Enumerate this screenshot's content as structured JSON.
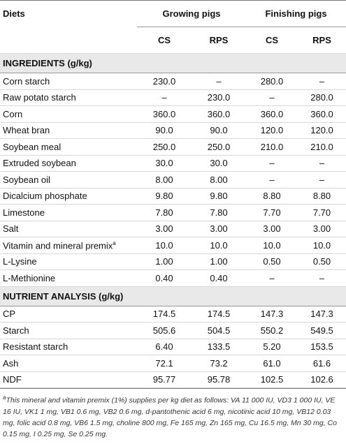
{
  "header": {
    "diets": "Diets",
    "groups": [
      "Growing pigs",
      "Finishing pigs"
    ],
    "subheaders": [
      "CS",
      "RPS",
      "CS",
      "RPS"
    ]
  },
  "sections": [
    {
      "title": "INGREDIENTS (g/kg)",
      "rows": [
        {
          "label": "Corn starch",
          "values": [
            "230.0",
            "–",
            "280.0",
            "–"
          ]
        },
        {
          "label": "Raw potato starch",
          "values": [
            "–",
            "230.0",
            "–",
            "280.0"
          ]
        },
        {
          "label": "Corn",
          "values": [
            "360.0",
            "360.0",
            "360.0",
            "360.0"
          ]
        },
        {
          "label": "Wheat bran",
          "values": [
            "90.0",
            "90.0",
            "120.0",
            "120.0"
          ]
        },
        {
          "label": "Soybean meal",
          "values": [
            "250.0",
            "250.0",
            "210.0",
            "210.0"
          ]
        },
        {
          "label": "Extruded soybean",
          "values": [
            "30.0",
            "30.0",
            "–",
            "–"
          ]
        },
        {
          "label": "Soybean oil",
          "values": [
            "8.00",
            "8.00",
            "–",
            "–"
          ]
        },
        {
          "label": "Dicalcium phosphate",
          "values": [
            "9.80",
            "9.80",
            "8.80",
            "8.80"
          ]
        },
        {
          "label": "Limestone",
          "values": [
            "7.80",
            "7.80",
            "7.70",
            "7.70"
          ]
        },
        {
          "label": "Salt",
          "values": [
            "3.00",
            "3.00",
            "3.00",
            "3.00"
          ]
        },
        {
          "label": "Vitamin and mineral premix",
          "note": "a",
          "values": [
            "10.0",
            "10.0",
            "10.0",
            "10.0"
          ]
        },
        {
          "label": "L-Lysine",
          "values": [
            "1.00",
            "1.00",
            "0.50",
            "0.50"
          ]
        },
        {
          "label": "L-Methionine",
          "values": [
            "0.40",
            "0.40",
            "–",
            "–"
          ]
        }
      ]
    },
    {
      "title": "NUTRIENT ANALYSIS (g/kg)",
      "rows": [
        {
          "label": "CP",
          "values": [
            "174.5",
            "174.5",
            "147.3",
            "147.3"
          ]
        },
        {
          "label": "Starch",
          "values": [
            "505.6",
            "504.5",
            "550.2",
            "549.5"
          ]
        },
        {
          "label": "Resistant starch",
          "values": [
            "6.40",
            "133.5",
            "5.20",
            "153.5"
          ]
        },
        {
          "label": "Ash",
          "values": [
            "72.1",
            "73.2",
            "61.0",
            "61.6"
          ]
        },
        {
          "label": "NDF",
          "values": [
            "95.77",
            "95.78",
            "102.5",
            "102.6"
          ]
        }
      ]
    }
  ],
  "footnote": {
    "mark": "a",
    "text": "This mineral and vitamin premix (1%) supplies per kg diet as follows: VA 11 000 IU, VD3 1 000 IU, VE 16 IU, VK1 1 mg, VB1 0.6 mg, VB2 0.6 mg, d-pantothenic acid 6 mg, nicotinic acid 10 mg, VB12 0.03 mg, folic acid 0.8 mg, VB6 1.5 mg, choline 800 mg, Fe 165 mg, Zn 165 mg, Cu 16.5 mg, Mn 30 mg, Co 0.15 mg, I 0.25 mg, Se 0.25 mg."
  }
}
